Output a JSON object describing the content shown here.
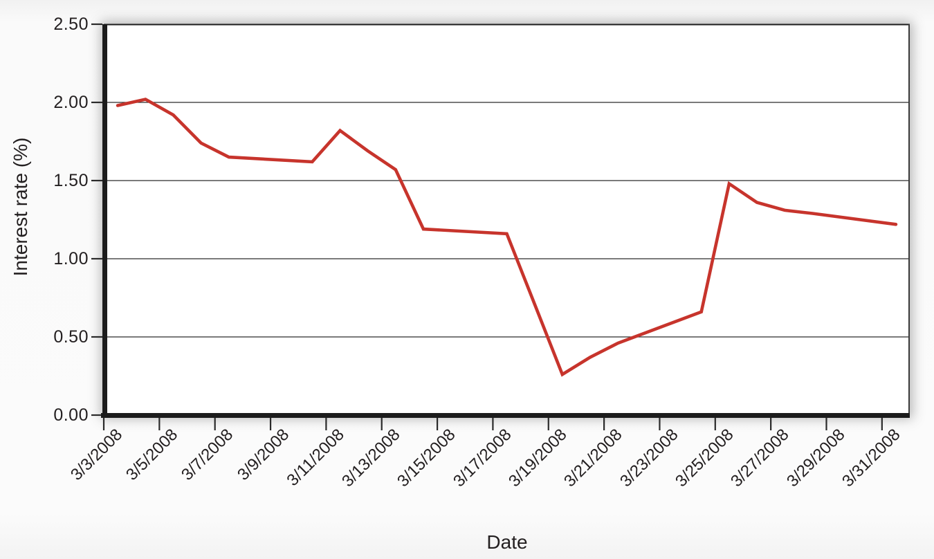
{
  "chart_data": {
    "type": "line",
    "title": "",
    "xlabel": "Date",
    "ylabel": "Interest rate (%)",
    "ylim": [
      0.0,
      2.5
    ],
    "y_tick_values": [
      0,
      0.5,
      1,
      1.5,
      2,
      2.5
    ],
    "y_tick_labels": [
      "0.00",
      "0.50",
      "1.00",
      "1.50",
      "2.00",
      "2.50"
    ],
    "x_tick_labels": [
      "3/3/2008",
      "3/5/2008",
      "3/7/2008",
      "3/9/2008",
      "3/11/2008",
      "3/13/2008",
      "3/15/2008",
      "3/17/2008",
      "3/19/2008",
      "3/21/2008",
      "3/23/2008",
      "3/25/2008",
      "3/27/2008",
      "3/29/2008",
      "3/31/2008"
    ],
    "x_range_days": [
      "3/3/2008",
      "3/31/2008"
    ],
    "grid": "horizontal",
    "legend": "none",
    "line_color": "#c7342c",
    "axis_color": "#1c1c1c",
    "series": [
      {
        "name": "Interest rate (%)",
        "points": [
          [
            "3/3/2008",
            1.98
          ],
          [
            "3/4/2008",
            2.02
          ],
          [
            "3/5/2008",
            1.92
          ],
          [
            "3/6/2008",
            1.74
          ],
          [
            "3/7/2008",
            1.65
          ],
          [
            "3/10/2008",
            1.62
          ],
          [
            "3/11/2008",
            1.82
          ],
          [
            "3/12/2008",
            1.69
          ],
          [
            "3/13/2008",
            1.57
          ],
          [
            "3/14/2008",
            1.19
          ],
          [
            "3/17/2008",
            1.16
          ],
          [
            "3/18/2008",
            0.71
          ],
          [
            "3/19/2008",
            0.26
          ],
          [
            "3/20/2008",
            0.37
          ],
          [
            "3/21/2008",
            0.46
          ],
          [
            "3/24/2008",
            0.66
          ],
          [
            "3/25/2008",
            1.48
          ],
          [
            "3/26/2008",
            1.36
          ],
          [
            "3/27/2008",
            1.31
          ],
          [
            "3/28/2008",
            1.29
          ],
          [
            "3/31/2008",
            1.22
          ]
        ]
      }
    ]
  }
}
